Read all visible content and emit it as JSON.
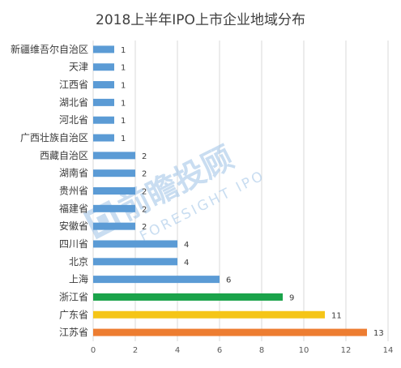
{
  "chart_data": {
    "type": "bar",
    "orientation": "horizontal",
    "title": "2018上半年IPO上市企业地域分布",
    "xlabel": "",
    "ylabel": "",
    "xlim": [
      0,
      14
    ],
    "xticks": [
      0,
      2,
      4,
      6,
      8,
      10,
      12,
      14
    ],
    "grid": true,
    "legend": "none",
    "categories": [
      "新疆维吾尔自治区",
      "天津",
      "江西省",
      "湖北省",
      "河北省",
      "广西壮族自治区",
      "西藏自治区",
      "湖南省",
      "贵州省",
      "福建省",
      "安徽省",
      "四川省",
      "北京",
      "上海",
      "浙江省",
      "广东省",
      "江苏省"
    ],
    "values": [
      1,
      1,
      1,
      1,
      1,
      1,
      2,
      2,
      2,
      2,
      2,
      4,
      4,
      6,
      9,
      11,
      13
    ],
    "colors": [
      "#5b9bd5",
      "#5b9bd5",
      "#5b9bd5",
      "#5b9bd5",
      "#5b9bd5",
      "#5b9bd5",
      "#5b9bd5",
      "#5b9bd5",
      "#5b9bd5",
      "#5b9bd5",
      "#5b9bd5",
      "#5b9bd5",
      "#5b9bd5",
      "#5b9bd5",
      "#1aa34a",
      "#f5c518",
      "#ed7d31"
    ]
  },
  "watermark": {
    "brand_cn": "前瞻投顾",
    "brand_en": "FORESIGHT IPO",
    "color": "#9dc3e6"
  }
}
